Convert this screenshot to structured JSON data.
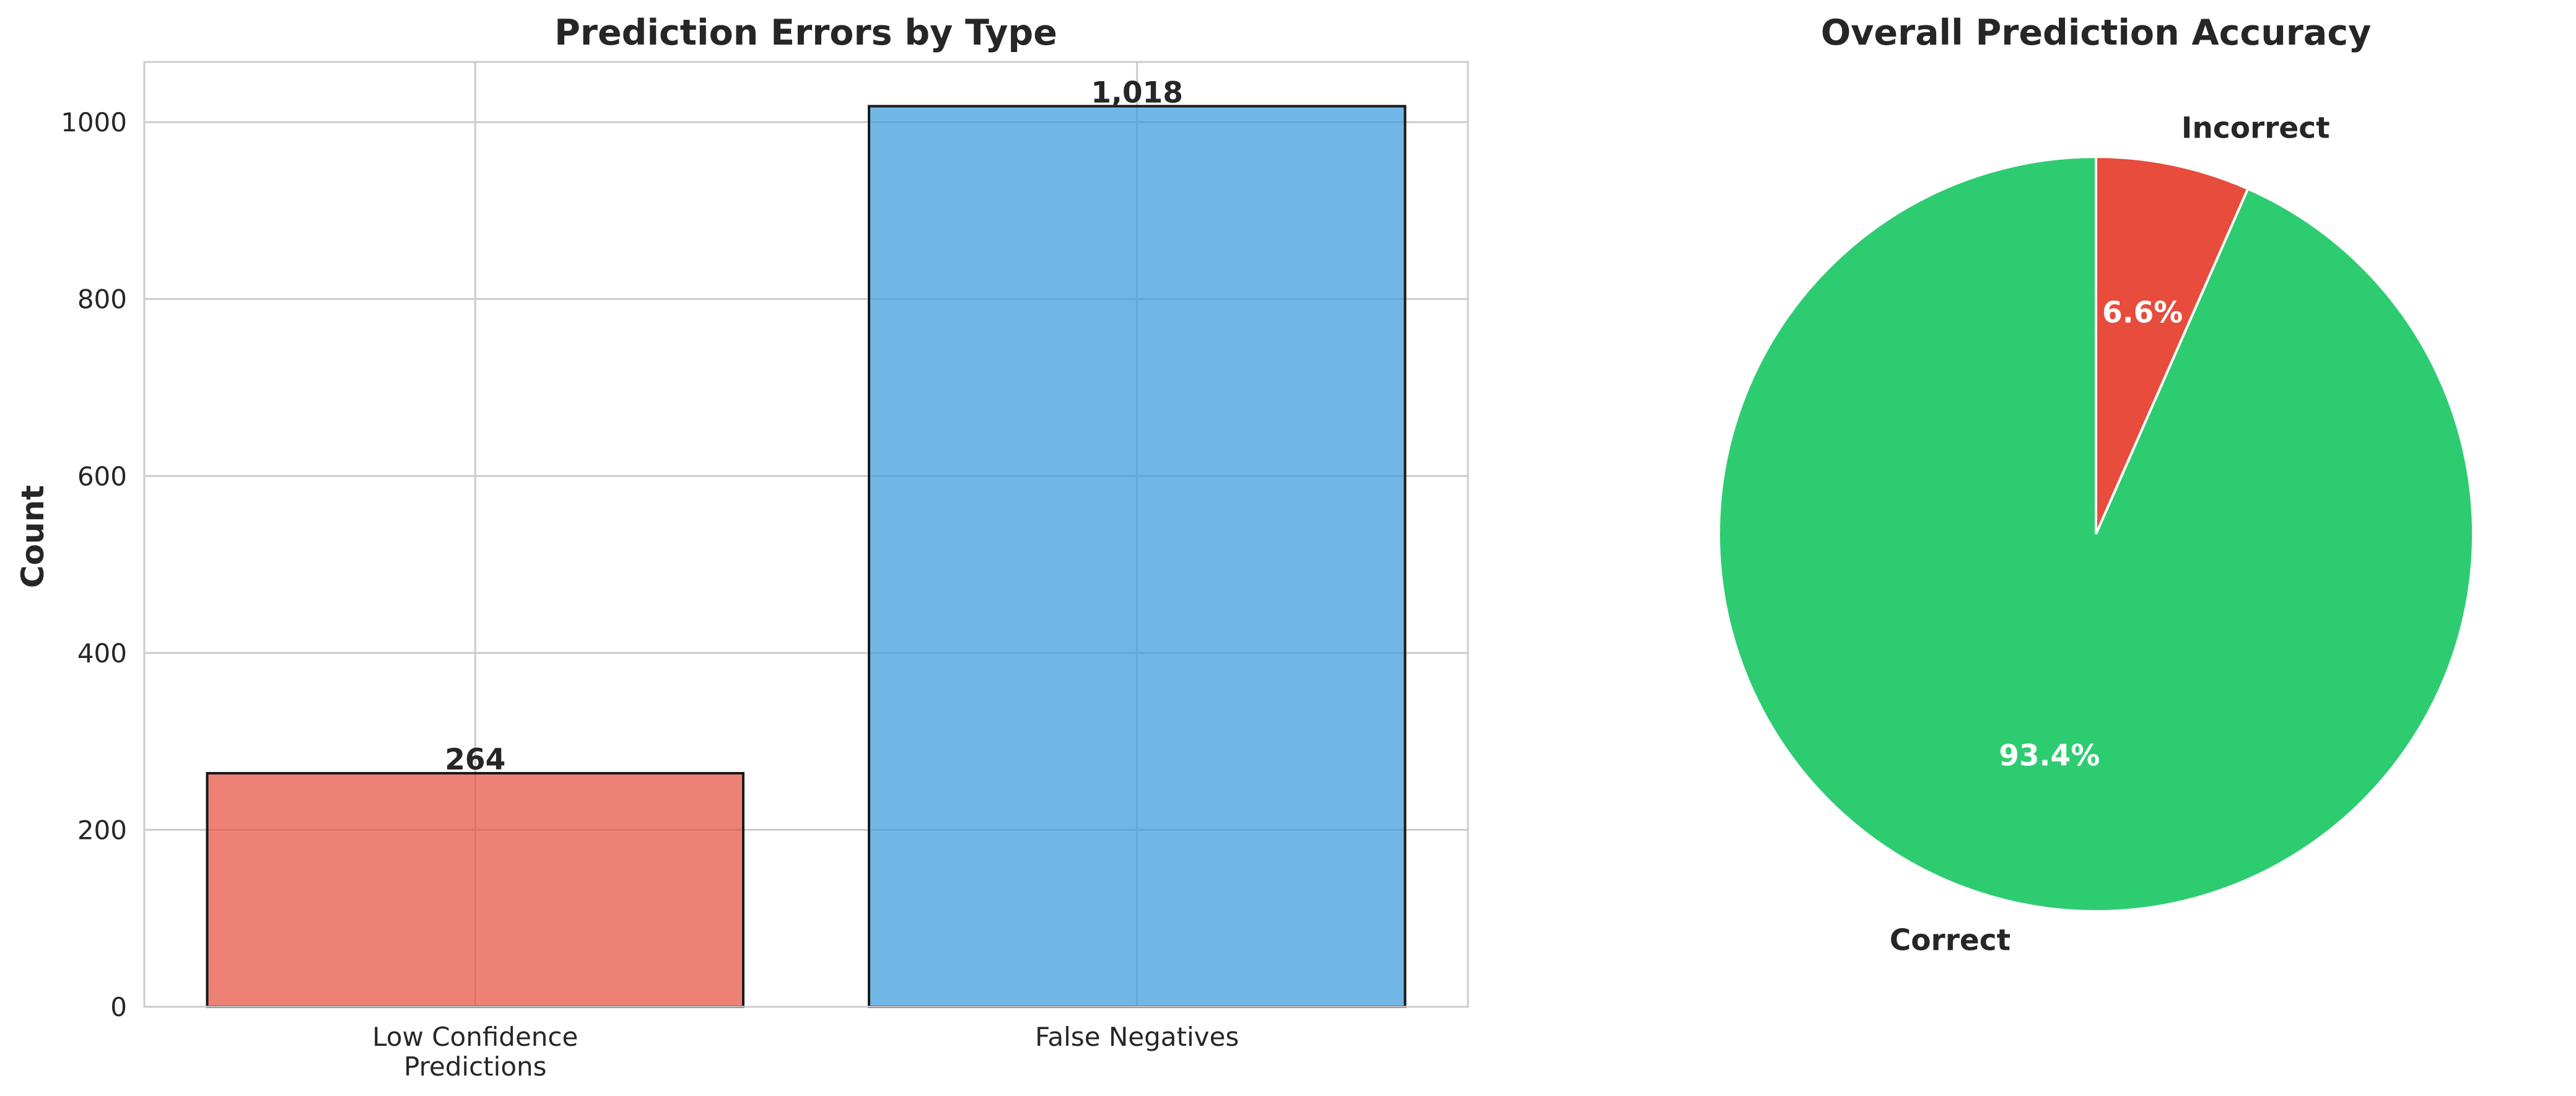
{
  "chart_data": [
    {
      "type": "bar",
      "title": "Prediction Errors by Type",
      "ylabel": "Count",
      "xlabel": "",
      "categories": [
        "Low Confidence\nPredictions",
        "False Negatives"
      ],
      "values": [
        264,
        1018
      ],
      "value_labels": [
        "264",
        "1,018"
      ],
      "colors": [
        "#e74c3c",
        "#3498db"
      ],
      "ylim": [
        0,
        1068
      ],
      "yticks": [
        0,
        200,
        400,
        600,
        800,
        1000
      ],
      "grid": true
    },
    {
      "type": "pie",
      "title": "Overall Prediction Accuracy",
      "labels": [
        "Incorrect",
        "Correct"
      ],
      "values": [
        6.6,
        93.4
      ],
      "pct_labels": [
        "6.6%",
        "93.4%"
      ],
      "colors": [
        "#e74c3c",
        "#2ecc71"
      ],
      "start_angle_deg": 90,
      "direction": "clockwise"
    }
  ]
}
